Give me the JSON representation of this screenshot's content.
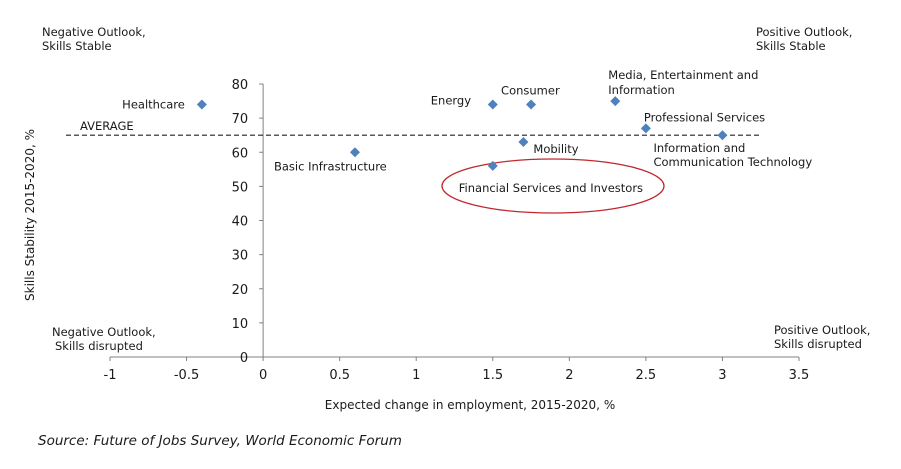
{
  "chart_data": {
    "type": "scatter",
    "title": "",
    "xlabel": "Expected change in employment, 2015-2020, %",
    "ylabel": "Skills Stability 2015-2020, %",
    "xlim": [
      -1,
      3.5
    ],
    "ylim": [
      0,
      80
    ],
    "x_ticks": [
      "-1",
      "-0.5",
      "0",
      "0.5",
      "1",
      "1.5",
      "2",
      "2.5",
      "3",
      "3.5"
    ],
    "y_ticks": [
      "0",
      "10",
      "20",
      "30",
      "40",
      "50",
      "60",
      "70",
      "80"
    ],
    "grid": false,
    "marker_color": "#4f81bd",
    "points": [
      {
        "label": "Healthcare",
        "x": -0.4,
        "y": 74
      },
      {
        "label": "Basic Infrastructure",
        "x": 0.6,
        "y": 60
      },
      {
        "label": "Energy",
        "x": 1.5,
        "y": 74
      },
      {
        "label": "Consumer",
        "x": 1.75,
        "y": 74
      },
      {
        "label": "Media, Entertainment and Information",
        "x": 2.3,
        "y": 75
      },
      {
        "label": "Professional Services",
        "x": 2.5,
        "y": 67
      },
      {
        "label": "Information and Communication Technology",
        "x": 3.0,
        "y": 65
      },
      {
        "label": "Mobility",
        "x": 1.7,
        "y": 63
      },
      {
        "label": "Financial Services and Investors",
        "x": 1.5,
        "y": 56
      }
    ],
    "average": {
      "label": "AVERAGE",
      "y": 65
    },
    "quadrant_labels": {
      "top_left": "Negative Outlook, Skills Stable",
      "top_right": "Positive Outlook, Skills Stable",
      "bottom_left": "Negative Outlook, Skills disrupted",
      "bottom_right": "Positive Outlook, Skills disrupted"
    },
    "highlight": {
      "label": "Financial Services and Investors",
      "color": "#c0282d"
    }
  },
  "source": "Source: Future of Jobs Survey, World Economic Forum"
}
